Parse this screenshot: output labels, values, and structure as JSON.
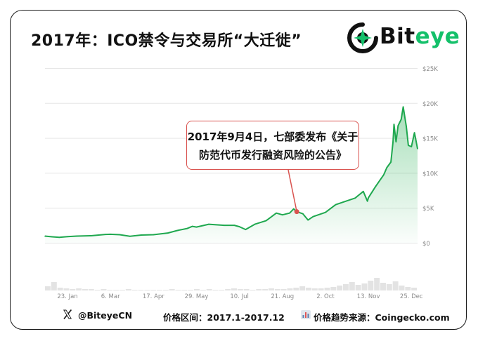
{
  "title": "2017年：ICO禁令与交易所“大迁徙”",
  "logo": {
    "brand_prefix": "Bit",
    "brand_accent": "eye",
    "accent_color": "#14c06a"
  },
  "annotation": {
    "line1": "2017年9月4日，七部委发布《关于",
    "line2": "防范代币发行融资风险的公告》",
    "date": "2017-09-04",
    "price": 4500
  },
  "footer": {
    "handle": "@BiteyeCN",
    "period": "价格区间：2017.1-2017.12",
    "source": "价格趋势来源：Coingecko.com"
  },
  "chart_data": {
    "type": "area",
    "x_tick_labels": [
      "23. Jan",
      "6. Mar",
      "17. Apr",
      "29. May",
      "10. Jul",
      "21. Aug",
      "2. Oct",
      "13. Nov",
      "25. Dec"
    ],
    "y_tick_labels": [
      "$0",
      "$5K",
      "$10K",
      "$15K",
      "$20K",
      "$25K"
    ],
    "ylim": [
      0,
      25000
    ],
    "line_color": "#1fa84f",
    "series": [
      {
        "x": [
          "2017-01-01",
          "2017-01-08",
          "2017-01-15",
          "2017-01-23",
          "2017-02-01",
          "2017-02-15",
          "2017-03-01",
          "2017-03-06",
          "2017-03-15",
          "2017-03-25",
          "2017-04-05",
          "2017-04-17",
          "2017-05-01",
          "2017-05-10",
          "2017-05-20",
          "2017-05-25",
          "2017-05-29",
          "2017-06-10",
          "2017-06-25",
          "2017-07-05",
          "2017-07-10",
          "2017-07-16",
          "2017-07-25",
          "2017-08-05",
          "2017-08-15",
          "2017-08-21",
          "2017-08-28",
          "2017-09-01",
          "2017-09-04",
          "2017-09-10",
          "2017-09-15",
          "2017-09-20",
          "2017-10-02",
          "2017-10-12",
          "2017-10-20",
          "2017-10-31",
          "2017-11-08",
          "2017-11-12",
          "2017-11-13",
          "2017-11-20",
          "2017-11-28",
          "2017-12-01",
          "2017-12-05",
          "2017-12-07",
          "2017-12-08",
          "2017-12-10",
          "2017-12-12",
          "2017-12-15",
          "2017-12-17",
          "2017-12-20",
          "2017-12-22",
          "2017-12-25",
          "2017-12-28",
          "2017-12-31"
        ],
        "y": [
          1000,
          900,
          820,
          920,
          1000,
          1050,
          1250,
          1270,
          1200,
          970,
          1150,
          1200,
          1450,
          1800,
          2100,
          2400,
          2300,
          2700,
          2550,
          2550,
          2350,
          1950,
          2700,
          3200,
          4300,
          4050,
          4300,
          4900,
          4500,
          4200,
          3300,
          3800,
          4400,
          5500,
          5900,
          6450,
          7400,
          6000,
          6500,
          8100,
          9800,
          10800,
          11600,
          14500,
          17000,
          14500,
          16800,
          17700,
          19500,
          16700,
          14000,
          13800,
          15800,
          13500
        ]
      }
    ]
  }
}
